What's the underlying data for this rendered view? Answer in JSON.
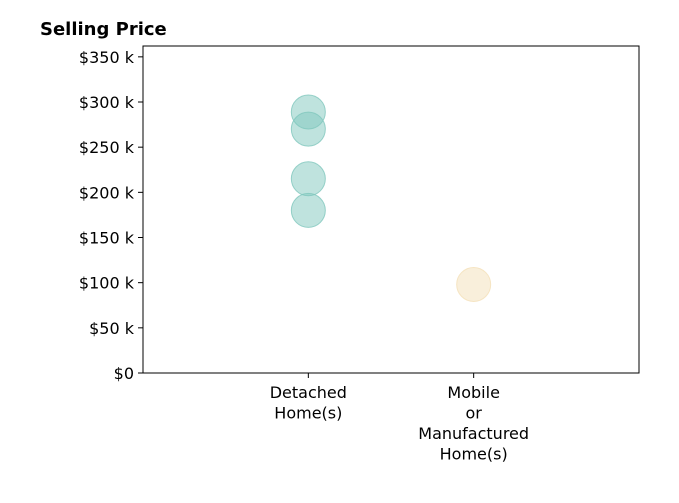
{
  "chart_data": {
    "type": "scatter",
    "title": "Selling Price",
    "xlabel": "",
    "ylabel": "",
    "categories": [
      [
        "Detached",
        "Home(s)"
      ],
      [
        "Mobile",
        "or",
        "Manufactured",
        "Home(s)"
      ]
    ],
    "xlim": [
      0,
      3
    ],
    "ylim": [
      0,
      362000
    ],
    "yticks": [
      0,
      50000,
      100000,
      150000,
      200000,
      250000,
      300000,
      350000
    ],
    "ytick_labels": [
      "$0",
      "$50 k",
      "$100 k",
      "$150 k",
      "$200 k",
      "$250 k",
      "$300 k",
      "$350 k"
    ],
    "grid": false,
    "legend": "none",
    "series": [
      {
        "category_index": 0,
        "color": "#7fc7bd",
        "values": [
          289000,
          270000,
          215000,
          180000
        ]
      },
      {
        "category_index": 1,
        "color": "#f4e0b8",
        "values": [
          98000
        ]
      }
    ]
  }
}
